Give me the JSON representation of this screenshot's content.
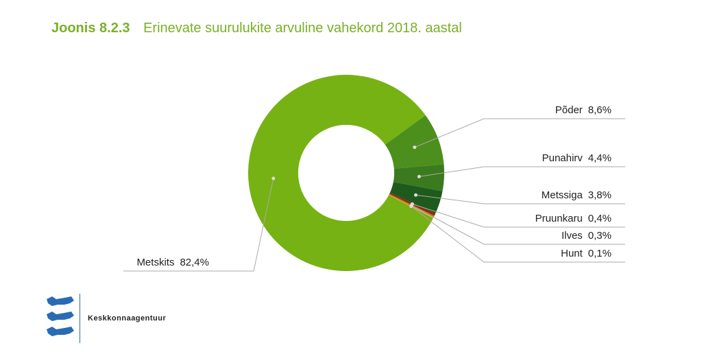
{
  "title": {
    "number": "Joonis 8.2.3",
    "text": "Erinevate suurulukite arvuline vahekord 2018. aastal"
  },
  "chart_data": {
    "type": "pie",
    "donut": true,
    "slices": [
      {
        "label": "Metskits",
        "value": 82.4,
        "value_label": "82,4%",
        "color": "#76b213"
      },
      {
        "label": "Põder",
        "value": 8.6,
        "value_label": "8,6%",
        "color": "#4d8f1c"
      },
      {
        "label": "Punahirv",
        "value": 4.4,
        "value_label": "4,4%",
        "color": "#3b7a1e"
      },
      {
        "label": "Metssiga",
        "value": 3.8,
        "value_label": "3,8%",
        "color": "#1f5a1d"
      },
      {
        "label": "Pruunkaru",
        "value": 0.4,
        "value_label": "0,4%",
        "color": "#8b2a12"
      },
      {
        "label": "Ilves",
        "value": 0.3,
        "value_label": "0,3%",
        "color": "#d2691e"
      },
      {
        "label": "Hunt",
        "value": 0.1,
        "value_label": "0,1%",
        "color": "#f2b233"
      }
    ]
  },
  "org": {
    "name": "Keskkonnaagentuur",
    "icon": "three-lions-icon",
    "color": "#2a6bb5"
  }
}
